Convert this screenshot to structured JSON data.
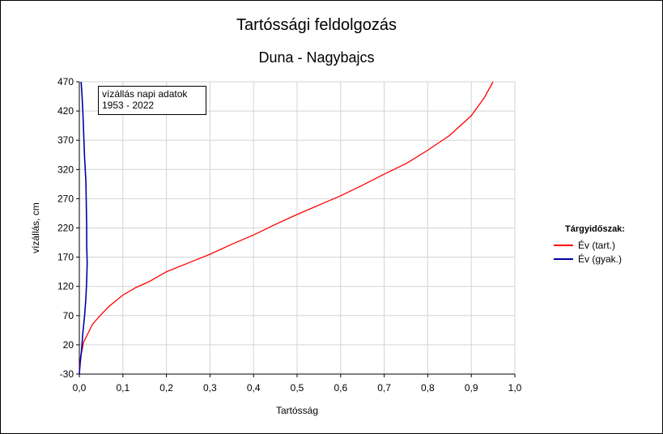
{
  "title": "Tartóssági feldolgozás",
  "subtitle": "Duna - Nagybajcs",
  "note": {
    "line1": "vízállás napi adatok",
    "line2": "1953 - 2022"
  },
  "legend": {
    "title": "Tárgyidőszak:",
    "items": [
      "Év (tart.)",
      "Év (gyak.)"
    ]
  },
  "chart_data": {
    "type": "line",
    "xlabel": "Tartósság",
    "ylabel": "vízállás, cm",
    "xlim": [
      0.0,
      1.0
    ],
    "ylim": [
      -30,
      470
    ],
    "xticks": [
      "0,0",
      "0,1",
      "0,2",
      "0,3",
      "0,4",
      "0,5",
      "0,6",
      "0,7",
      "0,8",
      "0,9",
      "1,0"
    ],
    "yticks": [
      "-30",
      "20",
      "70",
      "120",
      "170",
      "220",
      "270",
      "320",
      "370",
      "420",
      "470"
    ],
    "grid": true,
    "legend_position": "right",
    "series": [
      {
        "name": "Év (tart.)",
        "color": "#ff0000",
        "points": [
          [
            0.0,
            -20
          ],
          [
            0.003,
            0
          ],
          [
            0.006,
            10
          ],
          [
            0.01,
            25
          ],
          [
            0.02,
            40
          ],
          [
            0.03,
            55
          ],
          [
            0.05,
            72
          ],
          [
            0.07,
            87
          ],
          [
            0.1,
            105
          ],
          [
            0.13,
            118
          ],
          [
            0.16,
            128
          ],
          [
            0.2,
            145
          ],
          [
            0.25,
            160
          ],
          [
            0.3,
            175
          ],
          [
            0.35,
            192
          ],
          [
            0.4,
            208
          ],
          [
            0.45,
            226
          ],
          [
            0.5,
            243
          ],
          [
            0.55,
            259
          ],
          [
            0.6,
            275
          ],
          [
            0.65,
            293
          ],
          [
            0.7,
            312
          ],
          [
            0.75,
            330
          ],
          [
            0.8,
            353
          ],
          [
            0.85,
            378
          ],
          [
            0.9,
            412
          ],
          [
            0.93,
            443
          ],
          [
            0.95,
            470
          ]
        ]
      },
      {
        "name": "Év (gyak.)",
        "color": "#0000aa",
        "points": [
          [
            0.0,
            -30
          ],
          [
            0.002,
            -10
          ],
          [
            0.005,
            10
          ],
          [
            0.008,
            40
          ],
          [
            0.012,
            70
          ],
          [
            0.015,
            100
          ],
          [
            0.017,
            130
          ],
          [
            0.018,
            160
          ],
          [
            0.017,
            190
          ],
          [
            0.017,
            220
          ],
          [
            0.016,
            260
          ],
          [
            0.015,
            300
          ],
          [
            0.012,
            340
          ],
          [
            0.01,
            380
          ],
          [
            0.008,
            420
          ],
          [
            0.006,
            450
          ],
          [
            0.004,
            470
          ]
        ]
      }
    ]
  }
}
